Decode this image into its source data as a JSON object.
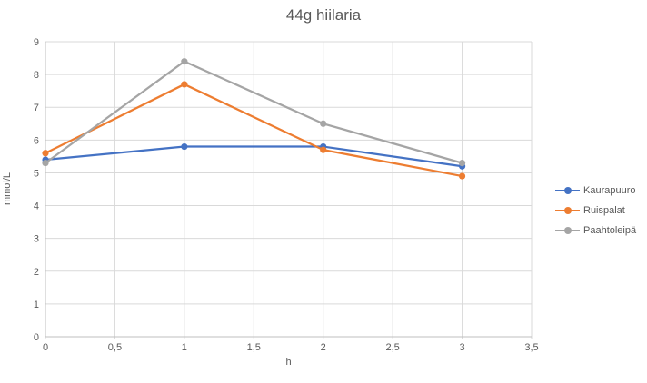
{
  "chart_data": {
    "type": "line",
    "title": "44g hiilaria",
    "xlabel": "h",
    "ylabel": "mmol/L",
    "x": [
      0,
      1,
      2,
      3
    ],
    "series": [
      {
        "name": "Kaurapuuro",
        "color": "#4472C4",
        "values": [
          5.4,
          5.8,
          5.8,
          5.2
        ]
      },
      {
        "name": "Ruispalat",
        "color": "#ED7D31",
        "values": [
          5.6,
          7.7,
          5.7,
          4.9
        ]
      },
      {
        "name": "Paahtoleipä",
        "color": "#A5A5A5",
        "values": [
          5.3,
          8.4,
          6.5,
          5.3
        ]
      }
    ],
    "xlim": [
      0,
      3.5
    ],
    "ylim": [
      0,
      9
    ],
    "x_ticks": {
      "values": [
        0,
        0.5,
        1,
        1.5,
        2,
        2.5,
        3,
        3.5
      ],
      "labels": [
        "0",
        "0,5",
        "1",
        "1,5",
        "2",
        "2,5",
        "3",
        "3,5"
      ]
    },
    "y_ticks": {
      "values": [
        0,
        1,
        2,
        3,
        4,
        5,
        6,
        7,
        8,
        9
      ],
      "labels": [
        "0",
        "1",
        "2",
        "3",
        "4",
        "5",
        "6",
        "7",
        "8",
        "9"
      ]
    },
    "grid": true,
    "legend_position": "right",
    "marker": "circle",
    "colors": {
      "text": "#595959",
      "gridline": "#D9D9D9",
      "axis_line": "#BFBFBF"
    }
  }
}
